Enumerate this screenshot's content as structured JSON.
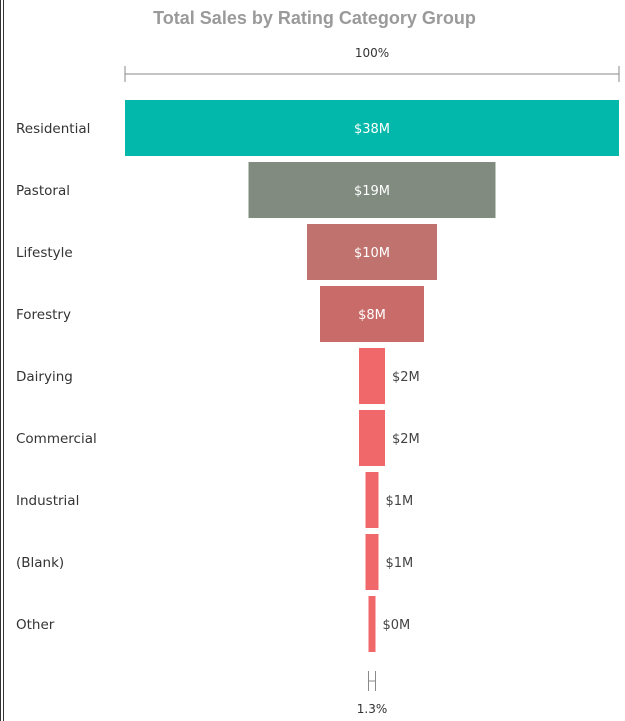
{
  "chart_data": {
    "type": "funnel",
    "title": "Total Sales by Rating Category Group",
    "top_percent_label": "100%",
    "bottom_percent_label": "1.3%",
    "categories": [
      "Residential",
      "Pastoral",
      "Lifestyle",
      "Forestry",
      "Dairying",
      "Commercial",
      "Industrial",
      "(Blank)",
      "Other"
    ],
    "values": [
      38,
      19,
      10,
      8,
      2,
      2,
      1,
      1,
      0.5
    ],
    "value_labels": [
      "$38M",
      "$19M",
      "$10M",
      "$8M",
      "$2M",
      "$2M",
      "$1M",
      "$1M",
      "$0M"
    ],
    "unit": "$M",
    "colors": [
      "#01b8aa",
      "#818b80",
      "#c0736e",
      "#c96c69",
      "#f0686a",
      "#f0686a",
      "#f0686a",
      "#f0686a",
      "#f0686a"
    ]
  }
}
